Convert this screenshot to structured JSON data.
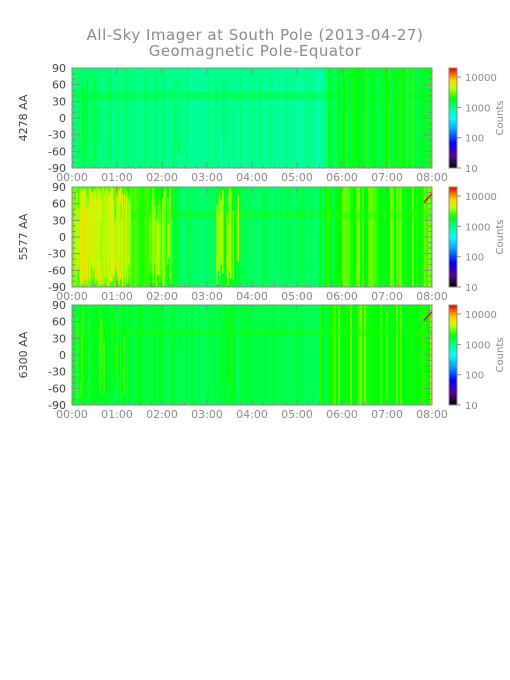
{
  "title": "All-Sky Imager at South Pole (2013-04-27)",
  "subtitle": "Geomagnetic Pole-Equator",
  "chart_data": [
    {
      "type": "heatmap",
      "ylabel": "4278 AA",
      "x_ticks": [
        "00:00",
        "01:00",
        "02:00",
        "03:00",
        "04:00",
        "05:00",
        "06:00",
        "07:00",
        "08:00"
      ],
      "y_ticks": [
        90,
        60,
        30,
        0,
        -30,
        -60,
        -90
      ],
      "ylim": [
        -90,
        90
      ],
      "colorbar": {
        "label": "Counts",
        "ticks": [
          "10",
          "100",
          "1000",
          "10000"
        ],
        "scale": "log",
        "range": [
          10,
          20000
        ]
      },
      "level_hours": [
        0.0,
        0.5,
        1.0,
        1.5,
        2.0,
        2.5,
        3.0,
        3.5,
        4.0,
        4.5,
        5.0,
        5.5,
        6.0,
        6.5,
        7.0,
        7.5,
        8.0
      ],
      "level_log_counts": [
        3.05,
        3.05,
        3.04,
        3.03,
        3.02,
        3.01,
        3.0,
        3.0,
        2.99,
        2.98,
        2.98,
        2.95,
        3.2,
        3.2,
        3.2,
        3.2,
        3.2
      ]
    },
    {
      "type": "heatmap",
      "ylabel": "5577 AA",
      "x_ticks": [
        "00:00",
        "01:00",
        "02:00",
        "03:00",
        "04:00",
        "05:00",
        "06:00",
        "07:00",
        "08:00"
      ],
      "y_ticks": [
        90,
        60,
        30,
        0,
        -30,
        -60,
        -90
      ],
      "ylim": [
        -90,
        90
      ],
      "colorbar": {
        "label": "Counts",
        "ticks": [
          "10",
          "100",
          "1000",
          "10000"
        ],
        "scale": "log",
        "range": [
          10,
          20000
        ]
      },
      "level_hours": [
        0.0,
        0.5,
        1.0,
        1.5,
        2.0,
        2.5,
        3.0,
        3.5,
        4.0,
        4.5,
        5.0,
        5.5,
        6.0,
        6.5,
        7.0,
        7.5,
        8.0
      ],
      "level_log_counts": [
        3.45,
        3.45,
        3.4,
        3.4,
        3.35,
        3.1,
        3.1,
        3.25,
        3.1,
        3.1,
        3.1,
        3.1,
        3.3,
        3.3,
        3.3,
        3.3,
        3.35
      ]
    },
    {
      "type": "heatmap",
      "ylabel": "6300 AA",
      "x_ticks": [
        "00:00",
        "01:00",
        "02:00",
        "03:00",
        "04:00",
        "05:00",
        "06:00",
        "07:00",
        "08:00"
      ],
      "y_ticks": [
        90,
        60,
        30,
        0,
        -30,
        -60,
        -90
      ],
      "ylim": [
        -90,
        90
      ],
      "colorbar": {
        "label": "Counts",
        "ticks": [
          "10",
          "100",
          "1000",
          "10000"
        ],
        "scale": "log",
        "range": [
          10,
          20000
        ]
      },
      "level_hours": [
        0.0,
        0.5,
        1.0,
        1.5,
        2.0,
        2.5,
        3.0,
        3.5,
        4.0,
        4.5,
        5.0,
        5.5,
        6.0,
        6.5,
        7.0,
        7.5,
        8.0
      ],
      "level_log_counts": [
        3.2,
        3.25,
        3.2,
        3.2,
        3.2,
        3.15,
        3.15,
        3.2,
        3.15,
        3.15,
        3.15,
        3.15,
        3.3,
        3.3,
        3.3,
        3.3,
        3.35
      ]
    }
  ]
}
